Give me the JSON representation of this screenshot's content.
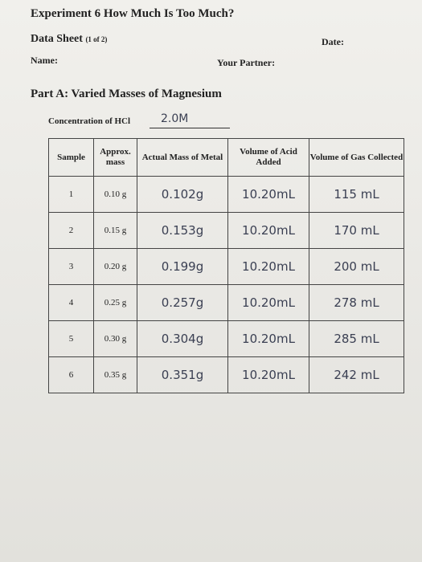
{
  "header": {
    "title": "Experiment 6   How Much Is Too Much?",
    "sheet": "Data Sheet",
    "sheet_page": "(1 of 2)",
    "date": "Date:",
    "name": "Name:",
    "partner": "Your Partner:"
  },
  "section": {
    "title": "Part A:  Varied Masses of Magnesium",
    "concentration_label": "Concentration of HCl",
    "concentration_value": "2.0M"
  },
  "table": {
    "columns": [
      "Sample",
      "Approx. mass",
      "Actual Mass of Metal",
      "Volume of Acid Added",
      "Volume of Gas Collected"
    ],
    "rows": [
      [
        "1",
        "0.10 g",
        "0.102g",
        "10.20mL",
        "115 mL"
      ],
      [
        "2",
        "0.15 g",
        "0.153g",
        "10.20mL",
        "170 mL"
      ],
      [
        "3",
        "0.20 g",
        "0.199g",
        "10.20mL",
        "200 mL"
      ],
      [
        "4",
        "0.25 g",
        "0.257g",
        "10.20mL",
        "278 mL"
      ],
      [
        "5",
        "0.30 g",
        "0.304g",
        "10.20mL",
        "285 mL"
      ],
      [
        "6",
        "0.35 g",
        "0.351g",
        "10.20mL",
        "242 mL"
      ]
    ]
  }
}
